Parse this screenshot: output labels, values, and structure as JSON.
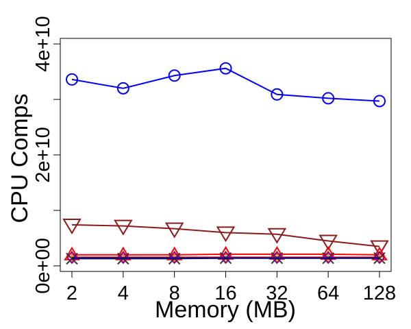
{
  "chart_data": {
    "type": "line",
    "title": "",
    "xlabel": "Memory (MB)",
    "ylabel": "CPU Comps",
    "categories": [
      "2",
      "4",
      "8",
      "16",
      "32",
      "64",
      "128"
    ],
    "y_ticks": [
      0,
      10000000000,
      20000000000,
      30000000000,
      40000000000
    ],
    "y_tick_labels": [
      "0e+00",
      "",
      "2e+10",
      "",
      "4e+10"
    ],
    "ylim": [
      -1000000000,
      41000000000
    ],
    "grid": false,
    "legend": "none",
    "series": [
      {
        "color": "#0000ff",
        "marker": "circle",
        "values": [
          33600000000,
          32000000000,
          34300000000,
          35600000000,
          30900000000,
          30200000000,
          29700000000
        ]
      },
      {
        "color": "#8b1a1a",
        "marker": "triangle-down",
        "values": [
          7400000000,
          7200000000,
          6700000000,
          6000000000,
          5700000000,
          4500000000,
          3500000000
        ]
      },
      {
        "color": "#ff0000",
        "marker": "triangle-up",
        "values": [
          2000000000,
          2000000000,
          2000000000,
          2100000000,
          2100000000,
          2100000000,
          2000000000
        ]
      },
      {
        "color": "#ff8c00",
        "marker": "plus",
        "values": [
          1600000000,
          1600000000,
          1600000000,
          1600000000,
          1600000000,
          1600000000,
          1600000000
        ]
      },
      {
        "color": "#333333",
        "marker": "x",
        "values": [
          1300000000,
          1300000000,
          1300000000,
          1400000000,
          1400000000,
          1400000000,
          1400000000
        ]
      },
      {
        "color": "#8b008b",
        "marker": "diamond",
        "values": [
          1500000000,
          1500000000,
          1500000000,
          1500000000,
          1500000000,
          1500000000,
          1500000000
        ]
      },
      {
        "color": "#00008b",
        "marker": "none",
        "values": [
          1400000000,
          1400000000,
          1400000000,
          1400000000,
          1400000000,
          1400000000,
          1400000000
        ]
      }
    ]
  }
}
